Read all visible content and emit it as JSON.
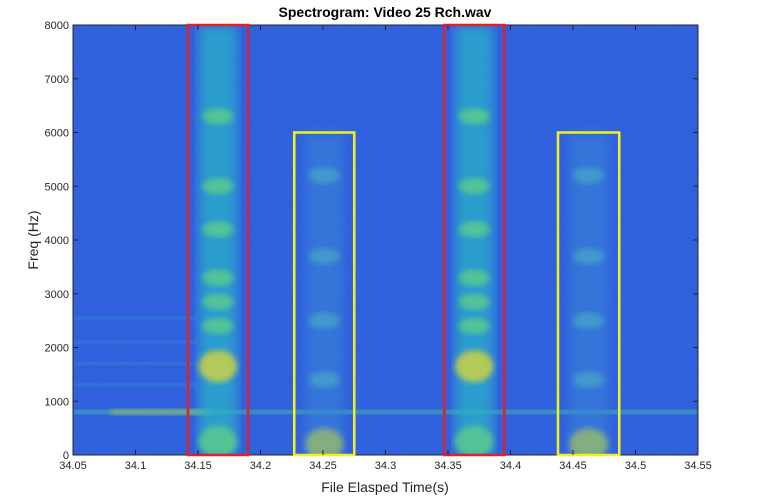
{
  "chart_data": {
    "type": "heatmap",
    "title": "Spectrogram: Video 25 Rch.wav",
    "xlabel": "File Elasped Time(s)",
    "ylabel": "Freq (Hz)",
    "xlim": [
      34.05,
      34.55
    ],
    "ylim": [
      0,
      8000
    ],
    "x_ticks": [
      "34.05",
      "34.1",
      "34.15",
      "34.2",
      "34.25",
      "34.3",
      "34.35",
      "34.4",
      "34.45",
      "34.5",
      "34.55"
    ],
    "y_ticks": [
      "0",
      "1000",
      "2000",
      "3000",
      "4000",
      "5000",
      "6000",
      "7000",
      "8000"
    ],
    "colormap": "parula",
    "background_color": "#2f5ee0",
    "steady_tone_hz": 800,
    "grid": false,
    "highlight_boxes": [
      {
        "x": [
          34.142,
          34.19
        ],
        "y": [
          0,
          8000
        ],
        "color": "#e0202a"
      },
      {
        "x": [
          34.227,
          34.275
        ],
        "y": [
          0,
          6000
        ],
        "color": "#f2f21a"
      },
      {
        "x": [
          34.347,
          34.395
        ],
        "y": [
          0,
          8000
        ],
        "color": "#e0202a"
      },
      {
        "x": [
          34.438,
          34.487
        ],
        "y": [
          0,
          6000
        ],
        "color": "#f2f21a"
      }
    ],
    "energy_bursts": [
      {
        "x": [
          34.142,
          34.19
        ],
        "y": [
          0,
          8000
        ],
        "strength": "strong"
      },
      {
        "x": [
          34.227,
          34.275
        ],
        "y": [
          0,
          6000
        ],
        "strength": "weak"
      },
      {
        "x": [
          34.347,
          34.395
        ],
        "y": [
          0,
          8000
        ],
        "strength": "strong"
      },
      {
        "x": [
          34.438,
          34.487
        ],
        "y": [
          0,
          6000
        ],
        "strength": "weak"
      }
    ]
  }
}
